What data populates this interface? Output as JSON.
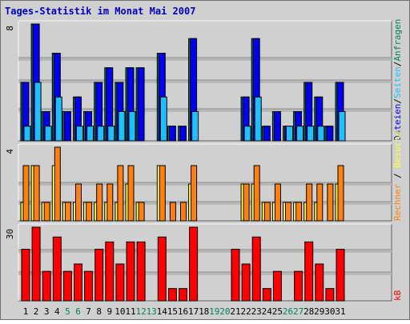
{
  "title": "Tages-Statistik im Monat Mai 2007",
  "colors": {
    "frame_bg": "#d0d0d0",
    "plot_bg": "#d0d0d0",
    "title": "#0000c0",
    "grid": "#909090",
    "dateien": "#0000ee",
    "seiten": "#20c0ff",
    "anfragen": "#008060",
    "besuche": "#ffff40",
    "rechner": "#ff8010",
    "kb": "#ff0000",
    "weekday": "#000000",
    "weekend": "#008060"
  },
  "legend": {
    "dateien": "Dateien",
    "seiten": "Seiten",
    "anfragen": "Anfragen",
    "besuche": "Besuche",
    "rechner": "Rechner",
    "kb": "kB",
    "sep": "/"
  },
  "chart_data": [
    {
      "type": "bar",
      "name": "top",
      "categories": [
        "1",
        "2",
        "3",
        "4",
        "5",
        "6",
        "7",
        "8",
        "9",
        "10",
        "11",
        "12",
        "13",
        "14",
        "15",
        "16",
        "17",
        "18",
        "19",
        "20",
        "21",
        "22",
        "23",
        "24",
        "25",
        "26",
        "27",
        "28",
        "29",
        "30",
        "31"
      ],
      "weekend_days": [
        "5",
        "6",
        "12",
        "13",
        "19",
        "20",
        "26",
        "27"
      ],
      "ylim": [
        0,
        8
      ],
      "ytick_label": "8",
      "series": [
        {
          "name": "Anfragen",
          "values": [
            4,
            8,
            2,
            6,
            2,
            3,
            2,
            4,
            5,
            4,
            5,
            5,
            0,
            6,
            1,
            1,
            7,
            0,
            0,
            0,
            0,
            3,
            7,
            1,
            2,
            1,
            2,
            4,
            3,
            1,
            4
          ]
        },
        {
          "name": "Dateien",
          "values": [
            4,
            8,
            2,
            6,
            2,
            3,
            2,
            4,
            5,
            4,
            5,
            5,
            0,
            6,
            1,
            1,
            7,
            0,
            0,
            0,
            0,
            3,
            7,
            1,
            2,
            1,
            2,
            4,
            3,
            1,
            4
          ]
        },
        {
          "name": "Seiten",
          "values": [
            1,
            4,
            1,
            3,
            0,
            1,
            1,
            1,
            1,
            2,
            2,
            0,
            0,
            3,
            0,
            0,
            2,
            0,
            0,
            0,
            0,
            1,
            3,
            0,
            0,
            1,
            1,
            1,
            1,
            0,
            2
          ]
        }
      ]
    },
    {
      "type": "bar",
      "name": "middle",
      "ylim": [
        0,
        4
      ],
      "ytick_label": "4",
      "series": [
        {
          "name": "Besuche",
          "values": [
            1,
            3,
            1,
            3,
            1,
            1,
            1,
            1,
            1,
            1,
            2,
            1,
            0,
            3,
            0,
            0,
            2,
            0,
            0,
            0,
            0,
            2,
            2,
            1,
            1,
            1,
            1,
            1,
            1,
            0,
            2
          ]
        },
        {
          "name": "Rechner",
          "values": [
            3,
            3,
            1,
            4,
            1,
            2,
            1,
            2,
            2,
            3,
            3,
            1,
            0,
            3,
            1,
            1,
            3,
            0,
            0,
            0,
            0,
            2,
            3,
            1,
            2,
            1,
            1,
            2,
            2,
            2,
            3
          ]
        }
      ]
    },
    {
      "type": "bar",
      "name": "bottom",
      "ylim": [
        0,
        30
      ],
      "ytick_label": "30",
      "series": [
        {
          "name": "kB",
          "values": [
            21,
            30,
            12,
            26,
            12,
            15,
            12,
            21,
            24,
            15,
            24,
            24,
            0,
            26,
            5,
            5,
            30,
            0,
            0,
            0,
            21,
            15,
            26,
            5,
            12,
            0,
            12,
            24,
            15,
            5,
            21
          ]
        }
      ]
    }
  ]
}
